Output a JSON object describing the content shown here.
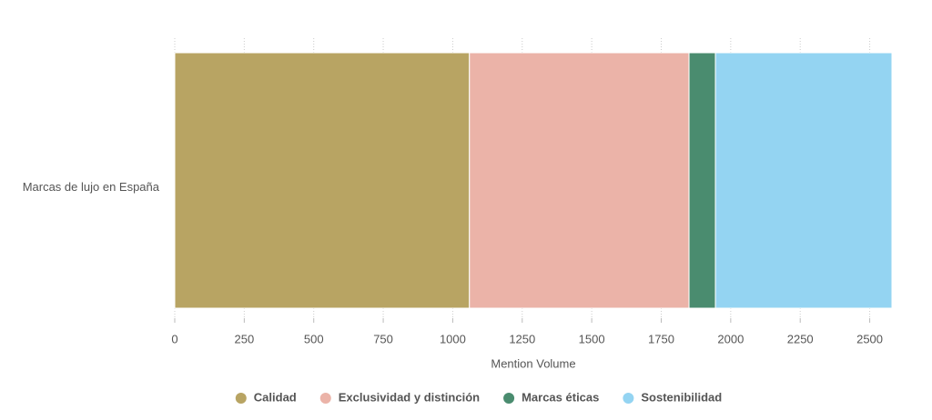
{
  "chart_data": {
    "type": "stacked-bar-horizontal",
    "categories": [
      "Marcas de lujo en España"
    ],
    "series": [
      {
        "name": "Calidad",
        "color": "#b8a463",
        "values": [
          1060
        ]
      },
      {
        "name": "Exclusividad y distinción",
        "color": "#ebb3a8",
        "values": [
          790
        ]
      },
      {
        "name": "Marcas éticas",
        "color": "#4a8c6f",
        "values": [
          95
        ]
      },
      {
        "name": "Sostenibilidad",
        "color": "#94d4f2",
        "values": [
          635
        ]
      }
    ],
    "x_label": "Mention Volume",
    "xlim": [
      0,
      2580
    ],
    "xticks": [
      0,
      250,
      500,
      750,
      1000,
      1250,
      1500,
      1750,
      2000,
      2250,
      2500
    ],
    "grid": true
  }
}
